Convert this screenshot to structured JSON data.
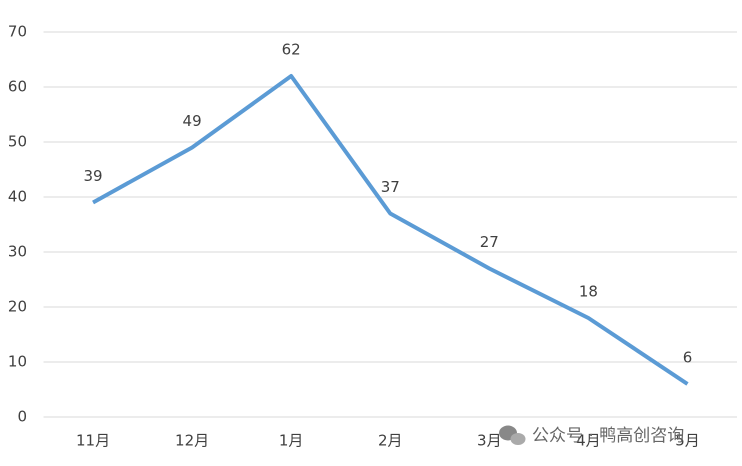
{
  "chart_data": {
    "type": "line",
    "categories": [
      "11月",
      "12月",
      "1月",
      "2月",
      "3月",
      "4月",
      "5月"
    ],
    "series": [
      {
        "color": "#5b9bd5",
        "values": [
          39,
          49,
          62,
          37,
          27,
          18,
          6
        ]
      }
    ],
    "ylim": [
      0,
      70
    ],
    "yticks": [
      0,
      10,
      20,
      30,
      40,
      50,
      60,
      70
    ],
    "grid": true
  },
  "watermark": "公众号 · 鸭高创咨询"
}
